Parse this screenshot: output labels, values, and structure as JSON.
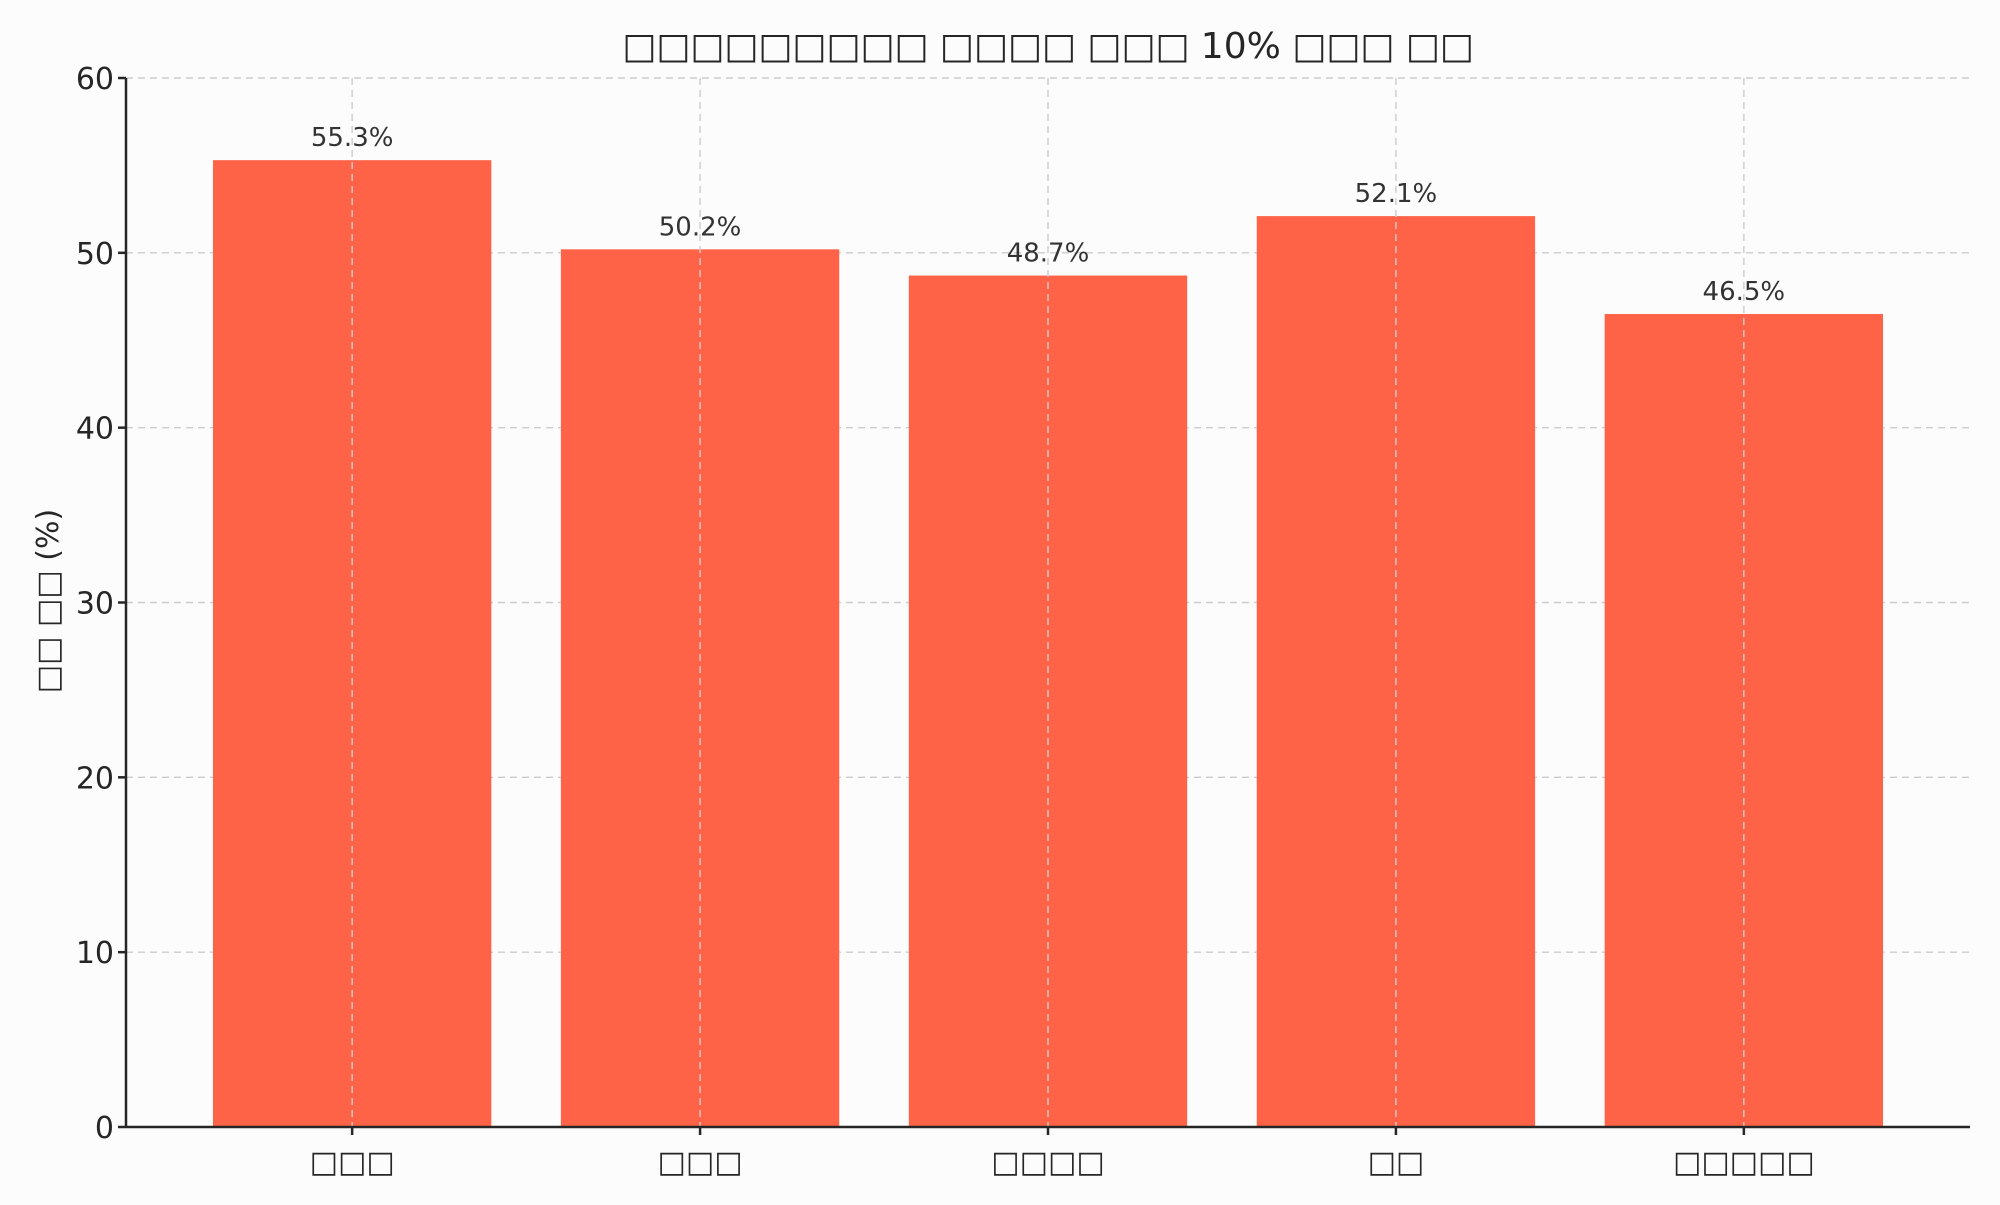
{
  "chart_data": {
    "type": "bar",
    "title": "□□□□□□□□□ □□□□ □□□ 10% □□□ □□",
    "xlabel": "",
    "ylabel": "□□ □□ (%)",
    "categories": [
      "□□□",
      "□□□",
      "□□□□",
      "□□",
      "□□□□□"
    ],
    "values": [
      55.3,
      50.2,
      48.7,
      52.1,
      46.5
    ],
    "data_labels": [
      "55.3%",
      "50.2%",
      "48.7%",
      "52.1%",
      "46.5%"
    ],
    "ylim": [
      0,
      60
    ],
    "yticks": [
      0,
      10,
      20,
      30,
      40,
      50,
      60
    ],
    "grid": true,
    "bar_color": "#ff6347"
  }
}
